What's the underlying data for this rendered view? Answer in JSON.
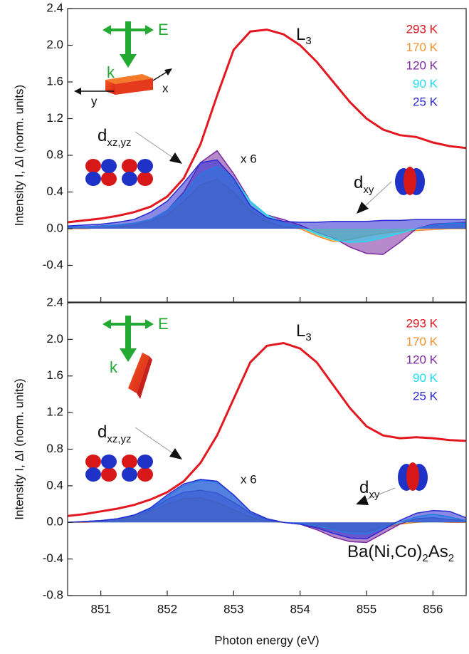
{
  "chart_data": [
    {
      "type": "area",
      "ylabel": "Intensity I,  ΔI (norm. units)",
      "x": [
        850.5,
        850.75,
        851,
        851.25,
        851.5,
        851.75,
        852,
        852.25,
        852.5,
        852.75,
        853,
        853.25,
        853.5,
        853.75,
        854,
        854.25,
        854.5,
        854.75,
        855,
        855.25,
        855.5,
        855.75,
        856,
        856.25,
        856.5
      ],
      "xlim": [
        850.5,
        856.5
      ],
      "xticks": [
        851,
        852,
        853,
        854,
        855,
        856
      ],
      "ylim": [
        -0.8,
        2.4
      ],
      "yticks": [
        -0.4,
        {
          "value": 0,
          "label": "0.0"
        },
        0.4,
        0.8,
        1.2,
        1.6,
        {
          "value": 2,
          "label": "2.0"
        },
        2.4
      ],
      "series": [
        {
          "name": "293 K",
          "color": "#e3171f",
          "style": "line",
          "values": [
            0.07,
            0.09,
            0.11,
            0.14,
            0.18,
            0.24,
            0.35,
            0.55,
            0.92,
            1.45,
            1.95,
            2.15,
            2.17,
            2.12,
            2.0,
            1.82,
            1.6,
            1.38,
            1.2,
            1.08,
            1.02,
            1.0,
            0.94,
            0.9,
            0.88
          ]
        },
        {
          "name": "170 K",
          "color": "#f0902a",
          "style": "area",
          "values": [
            0.0,
            0.0,
            0.01,
            0.02,
            0.04,
            0.08,
            0.15,
            0.3,
            0.48,
            0.54,
            0.4,
            0.2,
            0.08,
            0.02,
            0.0,
            -0.08,
            -0.14,
            -0.12,
            -0.08,
            -0.05,
            -0.03,
            -0.02,
            -0.01,
            0.0,
            0.0
          ]
        },
        {
          "name": "120 K",
          "color": "#7a2a9e",
          "style": "area",
          "values": [
            0.02,
            0.02,
            0.03,
            0.04,
            0.06,
            0.1,
            0.2,
            0.4,
            0.72,
            0.85,
            0.6,
            0.3,
            0.15,
            0.1,
            0.04,
            -0.04,
            -0.1,
            -0.2,
            -0.27,
            -0.28,
            -0.15,
            0.0,
            0.05,
            0.06,
            0.07
          ]
        },
        {
          "name": "90 K",
          "color": "#1fdcf0",
          "style": "area",
          "values": [
            0.02,
            0.02,
            0.03,
            0.04,
            0.06,
            0.1,
            0.2,
            0.38,
            0.6,
            0.68,
            0.55,
            0.3,
            0.15,
            0.06,
            0.02,
            -0.06,
            -0.12,
            -0.15,
            -0.14,
            -0.1,
            -0.05,
            0.0,
            0.04,
            0.06,
            0.06
          ]
        },
        {
          "name": "25 K",
          "color": "#2a2ad2",
          "style": "area",
          "values": [
            0.03,
            0.04,
            0.05,
            0.07,
            0.1,
            0.18,
            0.3,
            0.5,
            0.72,
            0.75,
            0.55,
            0.25,
            0.12,
            0.08,
            0.07,
            0.07,
            0.08,
            0.08,
            0.08,
            0.09,
            0.09,
            0.1,
            0.1,
            0.1,
            0.1
          ]
        }
      ],
      "annotations": {
        "edge": "L",
        "edge_sub": "3",
        "scale": "x 6",
        "orbital_a": "d",
        "orbital_a_sub": "xz,yz",
        "orbital_b": "d",
        "orbital_b_sub": "xy",
        "field": "E",
        "wavevector": "k",
        "axis_x": "x",
        "axis_y": "y"
      }
    },
    {
      "type": "area",
      "ylabel": "Intensity I,  ΔI (norm. units)",
      "xlabel": "Photon energy (eV)",
      "x": [
        850.5,
        850.75,
        851,
        851.25,
        851.5,
        851.75,
        852,
        852.25,
        852.5,
        852.75,
        853,
        853.25,
        853.5,
        853.75,
        854,
        854.25,
        854.5,
        854.75,
        855,
        855.25,
        855.5,
        855.75,
        856,
        856.25,
        856.5
      ],
      "xlim": [
        850.5,
        856.5
      ],
      "xticks": [
        851,
        852,
        853,
        854,
        855,
        856
      ],
      "ylim": [
        -0.8,
        2.4
      ],
      "yticks": [
        -0.8,
        -0.4,
        {
          "value": 0,
          "label": "0.0"
        },
        0.4,
        0.8,
        1.2,
        1.6,
        {
          "value": 2,
          "label": "2.0"
        },
        2.4
      ],
      "series": [
        {
          "name": "293 K",
          "color": "#e3171f",
          "style": "line",
          "values": [
            0.07,
            0.09,
            0.12,
            0.15,
            0.19,
            0.25,
            0.33,
            0.45,
            0.65,
            0.95,
            1.35,
            1.75,
            1.93,
            1.96,
            1.9,
            1.75,
            1.5,
            1.25,
            1.05,
            0.95,
            0.92,
            0.93,
            0.92,
            0.9,
            0.89
          ]
        },
        {
          "name": "170 K",
          "color": "#f0902a",
          "style": "area",
          "values": [
            0.0,
            0.0,
            0.01,
            0.03,
            0.06,
            0.12,
            0.2,
            0.26,
            0.27,
            0.22,
            0.14,
            0.06,
            0.01,
            0.0,
            -0.02,
            -0.05,
            -0.08,
            -0.1,
            -0.1,
            -0.06,
            -0.02,
            0.0,
            0.01,
            0.0,
            0.0
          ]
        },
        {
          "name": "120 K",
          "color": "#7a2a9e",
          "style": "area",
          "values": [
            0.0,
            0.01,
            0.02,
            0.04,
            0.08,
            0.14,
            0.25,
            0.33,
            0.35,
            0.32,
            0.22,
            0.1,
            0.03,
            0.0,
            -0.02,
            -0.08,
            -0.16,
            -0.21,
            -0.22,
            -0.12,
            -0.02,
            0.04,
            0.05,
            0.03,
            0.02
          ]
        },
        {
          "name": "90 K",
          "color": "#1fdcf0",
          "style": "area",
          "values": [
            0.0,
            0.01,
            0.02,
            0.04,
            0.08,
            0.15,
            0.28,
            0.4,
            0.46,
            0.44,
            0.3,
            0.12,
            0.04,
            0.0,
            -0.01,
            -0.04,
            -0.08,
            -0.12,
            -0.13,
            -0.06,
            0.0,
            0.06,
            0.09,
            0.06,
            0.02
          ]
        },
        {
          "name": "25 K",
          "color": "#2a2ad2",
          "style": "area",
          "values": [
            0.0,
            0.01,
            0.02,
            0.04,
            0.08,
            0.16,
            0.3,
            0.42,
            0.47,
            0.45,
            0.3,
            0.12,
            0.04,
            0.0,
            -0.02,
            -0.06,
            -0.12,
            -0.17,
            -0.18,
            -0.08,
            0.02,
            0.1,
            0.13,
            0.12,
            0.05
          ]
        }
      ],
      "annotations": {
        "edge": "L",
        "edge_sub": "3",
        "scale": "x 6",
        "orbital_a": "d",
        "orbital_a_sub": "xz,yz",
        "orbital_b": "d",
        "orbital_b_sub": "xy",
        "field": "E",
        "wavevector": "k",
        "sample": "Ba(Ni,Co)",
        "sample_sub1": "2",
        "sample_mid": "As",
        "sample_sub2": "2"
      }
    }
  ]
}
